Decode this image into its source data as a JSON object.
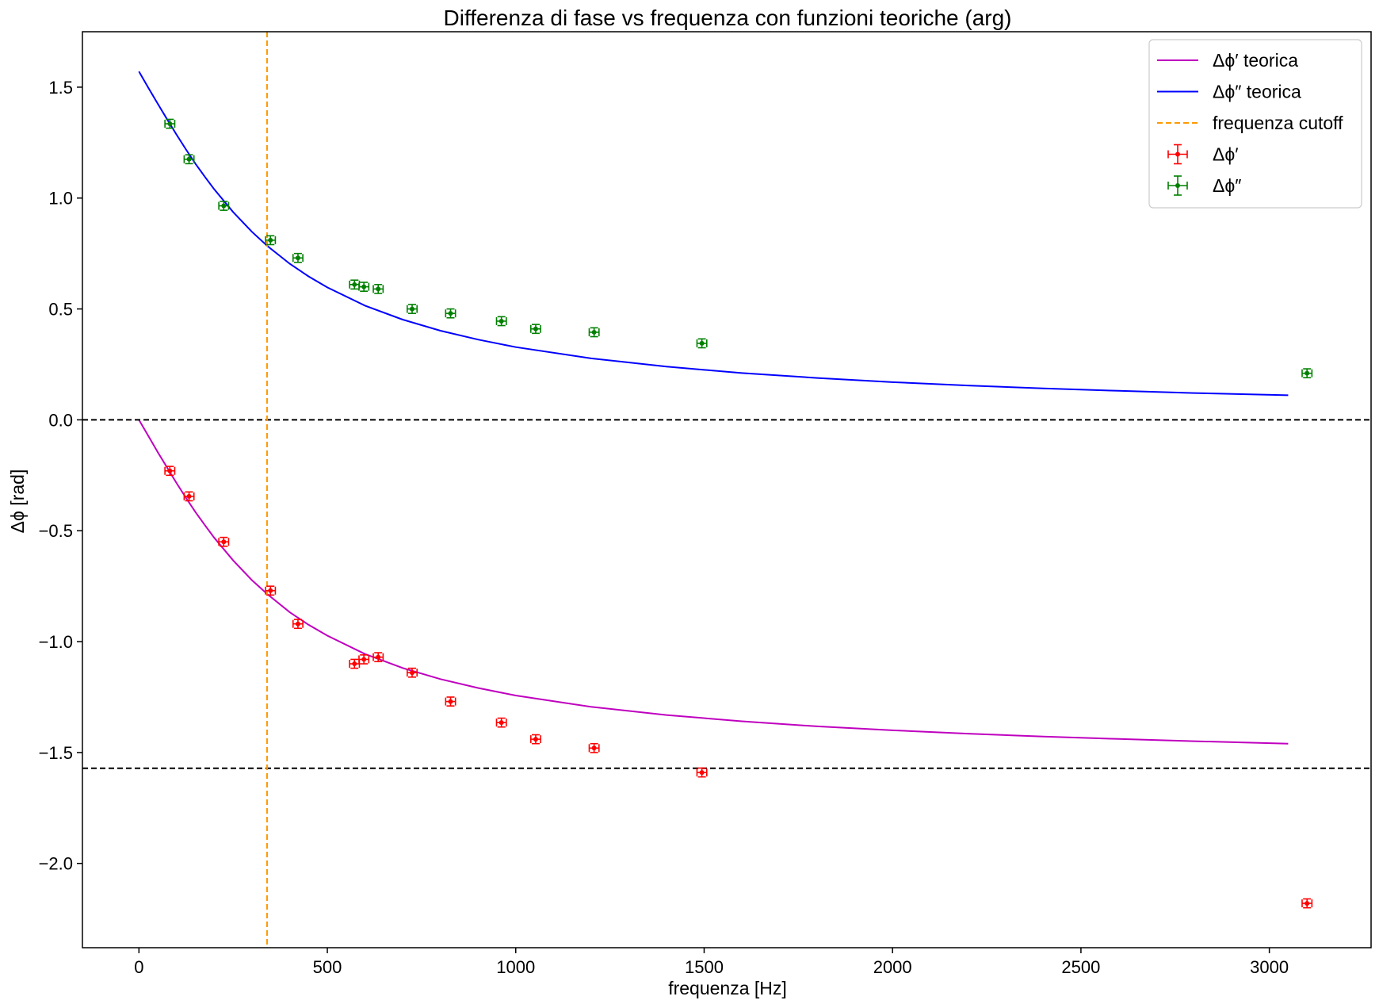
{
  "chart_data": {
    "type": "scatter",
    "title": "Differenza di fase vs frequenza con funzioni teoriche (arg)",
    "xlabel": "frequenza [Hz]",
    "ylabel": "Δϕ [rad]",
    "xlim": [
      -150,
      3270
    ],
    "ylim": [
      -2.38,
      1.75
    ],
    "x_ticks": [
      0,
      500,
      1000,
      1500,
      2000,
      2500,
      3000
    ],
    "y_ticks": [
      1.5,
      1.0,
      0.5,
      0.0,
      -0.5,
      -1.0,
      -1.5,
      -2.0
    ],
    "x_tick_labels": [
      "0",
      "500",
      "1000",
      "1500",
      "2000",
      "2500",
      "3000"
    ],
    "y_tick_labels": [
      "1.5",
      "1.0",
      "0.5",
      "0.0",
      "−0.5",
      "−1.0",
      "−1.5",
      "−2.0"
    ],
    "grid": false,
    "legend_position": "top-right",
    "cutoff_frequency": 340,
    "horizontal_reference_lines": [
      0.0,
      -1.5708
    ],
    "series": [
      {
        "name": "Δϕ′ teorica",
        "kind": "line",
        "color": "#bf00bf",
        "x": [
          0,
          25,
          50,
          75,
          100,
          125,
          150,
          175,
          200,
          250,
          300,
          340,
          400,
          450,
          500,
          600,
          700,
          800,
          900,
          1000,
          1200,
          1400,
          1600,
          1800,
          2000,
          2200,
          2400,
          2600,
          2800,
          3050
        ],
        "y": [
          0.0,
          -0.073,
          -0.146,
          -0.216,
          -0.286,
          -0.352,
          -0.416,
          -0.475,
          -0.532,
          -0.634,
          -0.723,
          -0.785,
          -0.867,
          -0.924,
          -0.973,
          -1.056,
          -1.119,
          -1.169,
          -1.209,
          -1.243,
          -1.294,
          -1.331,
          -1.359,
          -1.382,
          -1.4,
          -1.415,
          -1.428,
          -1.439,
          -1.449,
          -1.46
        ]
      },
      {
        "name": "Δϕ″ teorica",
        "kind": "line",
        "color": "#0000ff",
        "x": [
          0,
          25,
          50,
          75,
          100,
          125,
          150,
          175,
          200,
          250,
          300,
          340,
          400,
          450,
          500,
          600,
          700,
          800,
          900,
          1000,
          1200,
          1400,
          1600,
          1800,
          2000,
          2200,
          2400,
          2600,
          2800,
          3050
        ],
        "y": [
          1.571,
          1.497,
          1.425,
          1.354,
          1.285,
          1.219,
          1.155,
          1.096,
          1.039,
          0.937,
          0.848,
          0.785,
          0.704,
          0.647,
          0.597,
          0.515,
          0.452,
          0.402,
          0.362,
          0.328,
          0.277,
          0.24,
          0.211,
          0.189,
          0.17,
          0.155,
          0.142,
          0.131,
          0.121,
          0.111
        ]
      },
      {
        "name": "frequenza cutoff",
        "kind": "vline",
        "color": "#ff9900",
        "x": 340
      },
      {
        "name": "Δϕ′",
        "kind": "errorbar",
        "color": "#ff0000",
        "x": [
          82,
          133,
          225,
          349,
          422,
          572,
          597,
          635,
          725,
          827,
          962,
          1053,
          1208,
          1494,
          3100
        ],
        "y": [
          -0.23,
          -0.345,
          -0.55,
          -0.77,
          -0.92,
          -1.1,
          -1.08,
          -1.07,
          -1.14,
          -1.27,
          -1.365,
          -1.44,
          -1.48,
          -1.59,
          -2.18
        ],
        "xerr": 13,
        "yerr": 0.02
      },
      {
        "name": "Δϕ″",
        "kind": "errorbar",
        "color": "#008000",
        "x": [
          82,
          133,
          225,
          349,
          422,
          572,
          597,
          635,
          725,
          827,
          962,
          1053,
          1208,
          1494,
          3100
        ],
        "y": [
          1.335,
          1.175,
          0.965,
          0.81,
          0.73,
          0.61,
          0.6,
          0.59,
          0.5,
          0.48,
          0.445,
          0.41,
          0.395,
          0.345,
          0.21
        ],
        "xerr": 13,
        "yerr": 0.02
      }
    ]
  }
}
